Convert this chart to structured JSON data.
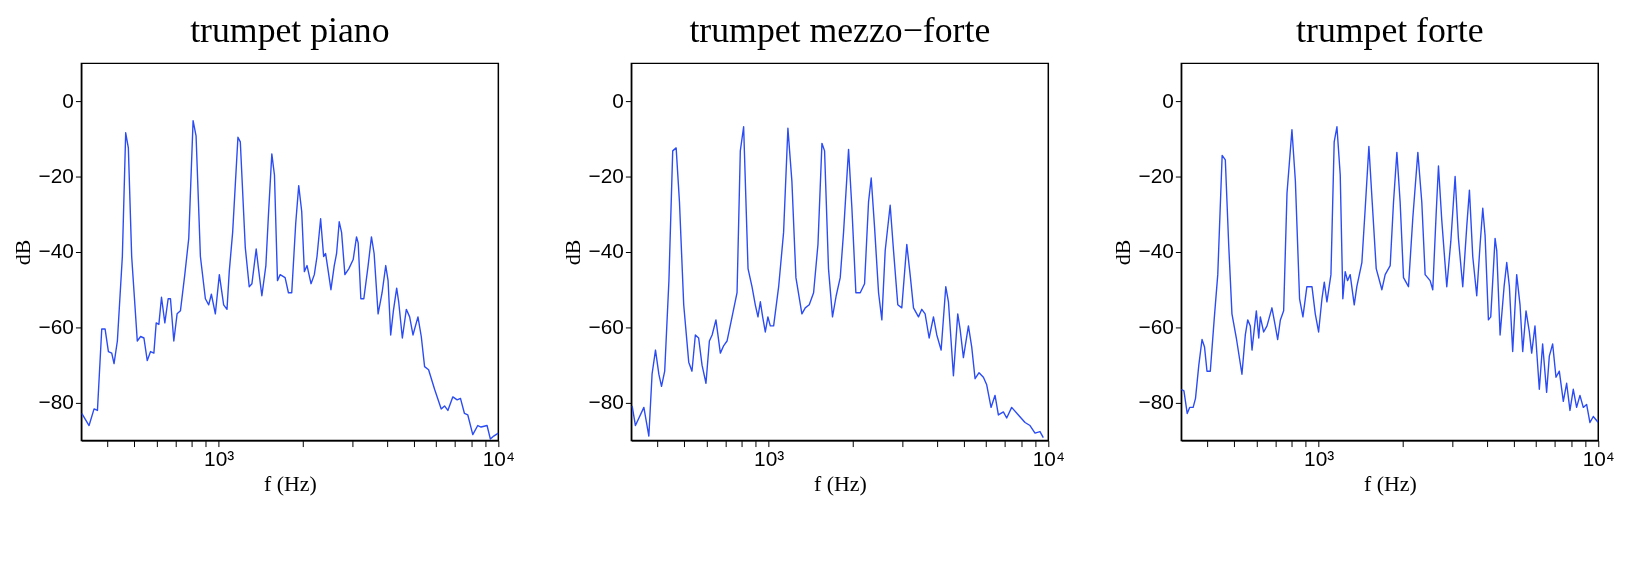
{
  "chart_data": [
    {
      "type": "line",
      "title": "trumpet piano",
      "xlabel": "f (Hz)",
      "ylabel": "dB",
      "log": "x",
      "grid": false,
      "xlim": [
        323,
        10000
      ],
      "ylim": [
        -90,
        10
      ],
      "yticks": [
        -80,
        -60,
        -40,
        -20,
        0
      ],
      "xticks": [
        {
          "value": 400,
          "label": null
        },
        {
          "value": 500,
          "label": null
        },
        {
          "value": 600,
          "label": null
        },
        {
          "value": 700,
          "label": null
        },
        {
          "value": 800,
          "label": null
        },
        {
          "value": 900,
          "label": null
        },
        {
          "value": 1000,
          "label": "10³"
        },
        {
          "value": 2000,
          "label": null
        },
        {
          "value": 3000,
          "label": null
        },
        {
          "value": 4000,
          "label": null
        },
        {
          "value": 5000,
          "label": null
        },
        {
          "value": 6000,
          "label": null
        },
        {
          "value": 7000,
          "label": null
        },
        {
          "value": 8000,
          "label": null
        },
        {
          "value": 9000,
          "label": null
        },
        {
          "value": 10000,
          "label": "10⁴"
        }
      ],
      "x": [
        324,
        344,
        358.5,
        368.6,
        381.9,
        392.5,
        403.4,
        414.6,
        422.6,
        434.3,
        452.5,
        465.1,
        475.4,
        488.6,
        511.7,
        525.9,
        540.5,
        555.5,
        570.8,
        586.6,
        597.9,
        611.2,
        624.6,
        642,
        659.8,
        672.5,
        691.2,
        710.2,
        730,
        756.6,
        781.7,
        810.1,
        830.2,
        860.4,
        896.4,
        921.3,
        941.7,
        973,
        1005.5,
        1042,
        1071,
        1091,
        1122,
        1172,
        1195,
        1245,
        1286,
        1315,
        1362,
        1388,
        1427,
        1475,
        1507,
        1549,
        1583,
        1623,
        1659,
        1728,
        1776,
        1825,
        1886,
        1933,
        1981,
        2025,
        2070,
        2139,
        2198,
        2247,
        2315,
        2373,
        2412,
        2466,
        2520,
        2590,
        2640,
        2698,
        2751,
        2827,
        2922,
        3027,
        3111,
        3154,
        3224,
        3304,
        3423,
        3518,
        3596,
        3716,
        3840,
        3957,
        4034,
        4122,
        4214,
        4330,
        4402,
        4537,
        4688,
        4818,
        4952,
        5159,
        5302,
        5449,
        5631,
        5916,
        6248,
        6421,
        6599,
        6876,
        7124,
        7321,
        7567,
        7777,
        8102,
        8441,
        8676,
        9113,
        9365,
        9625,
        10000
      ],
      "series": [
        {
          "color": "#2b4cf5",
          "values": [
            -82.8,
            -86,
            -81.6,
            -82,
            -60.4,
            -60.4,
            -66.4,
            -66.8,
            -69.6,
            -63.6,
            -41.2,
            -8.4,
            -12.4,
            -41.2,
            -63.6,
            -62.4,
            -62.8,
            -68.8,
            -66.4,
            -66.8,
            -58.8,
            -59.2,
            -52,
            -58.8,
            -52.4,
            -52.4,
            -63.6,
            -56.4,
            -55.6,
            -46,
            -36.4,
            -5.2,
            -9.2,
            -41.2,
            -52.4,
            -54,
            -51.2,
            -56.4,
            -46,
            -54,
            -55.2,
            -45.2,
            -34.8,
            -9.6,
            -10.8,
            -38.8,
            -49.2,
            -48.4,
            -39.2,
            -44.4,
            -51.6,
            -43.6,
            -30,
            -14,
            -19.6,
            -47.6,
            -46,
            -46.8,
            -50.8,
            -50.8,
            -32.4,
            -22.4,
            -29.2,
            -45.2,
            -43.6,
            -48.4,
            -46,
            -41.2,
            -31.2,
            -41.2,
            -40.4,
            -45.2,
            -50,
            -43.6,
            -40.4,
            -32,
            -34.8,
            -46,
            -44.4,
            -42,
            -36,
            -37.6,
            -52.4,
            -52.4,
            -43.6,
            -36,
            -40.4,
            -56.4,
            -50.8,
            -43.6,
            -47.6,
            -62,
            -55.6,
            -49.6,
            -53.2,
            -62.8,
            -55.2,
            -57.2,
            -62,
            -57.2,
            -62.4,
            -70.4,
            -71.2,
            -76.4,
            -81.6,
            -80.8,
            -82,
            -78.4,
            -79.2,
            -78.8,
            -82.8,
            -83.2,
            -88.4,
            -86,
            -86.4,
            -86,
            -89.6,
            -88.8,
            -88
          ]
        }
      ]
    },
    {
      "type": "line",
      "title": "trumpet mezzo−forte",
      "xlabel": "f (Hz)",
      "ylabel": "dB",
      "log": "x",
      "grid": false,
      "xlim": [
        323,
        10000
      ],
      "ylim": [
        -90,
        10
      ],
      "yticks": [
        -80,
        -60,
        -40,
        -20,
        0
      ],
      "xticks": [
        {
          "value": 400,
          "label": null
        },
        {
          "value": 500,
          "label": null
        },
        {
          "value": 600,
          "label": null
        },
        {
          "value": 700,
          "label": null
        },
        {
          "value": 800,
          "label": null
        },
        {
          "value": 900,
          "label": null
        },
        {
          "value": 1000,
          "label": "10³"
        },
        {
          "value": 2000,
          "label": null
        },
        {
          "value": 3000,
          "label": null
        },
        {
          "value": 4000,
          "label": null
        },
        {
          "value": 5000,
          "label": null
        },
        {
          "value": 6000,
          "label": null
        },
        {
          "value": 7000,
          "label": null
        },
        {
          "value": 8000,
          "label": null
        },
        {
          "value": 9000,
          "label": null
        },
        {
          "value": 10000,
          "label": "10⁴"
        }
      ],
      "x": [
        325,
        334,
        358,
        373,
        383,
        394,
        405,
        414,
        425,
        440,
        454,
        467,
        480,
        497,
        518,
        532,
        547,
        562,
        578,
        597,
        614,
        628,
        648,
        672,
        691,
        710,
        740,
        771,
        792,
        814,
        844,
        872,
        896,
        916,
        934,
        952,
        973,
        994,
        1014,
        1042,
        1086,
        1131,
        1172,
        1211,
        1252,
        1315,
        1352,
        1397,
        1448,
        1501,
        1551,
        1585,
        1637,
        1692,
        1744,
        1803,
        1853,
        1931,
        1985,
        2051,
        2126,
        2203,
        2276,
        2327,
        2391,
        2472,
        2540,
        2611,
        2720,
        2796,
        2896,
        2993,
        3119,
        3206,
        3296,
        3434,
        3529,
        3627,
        3749,
        3885,
        3993,
        4138,
        4299,
        4395,
        4579,
        4745,
        4836,
        4971,
        5180,
        5324,
        5472,
        5654,
        5860,
        6022,
        6241,
        6450,
        6629,
        6908,
        7099,
        7396,
        7816,
        8257,
        8602,
        8963,
        9338,
        9597
      ],
      "series": [
        {
          "color": "#2b4cf5",
          "values": [
            -80.8,
            -86,
            -81.2,
            -88.8,
            -72.4,
            -66,
            -72.4,
            -75.6,
            -71.6,
            -47.6,
            -13.2,
            -12.4,
            -26.8,
            -54,
            -69.2,
            -71.6,
            -62,
            -62.8,
            -70,
            -74.8,
            -63.6,
            -62,
            -58,
            -66.8,
            -64.8,
            -63.6,
            -57.2,
            -50.8,
            -13.2,
            -6.8,
            -44.4,
            -49.2,
            -54,
            -57.2,
            -53.2,
            -57.2,
            -61.2,
            -57.2,
            -59.6,
            -59.6,
            -49.2,
            -34.8,
            -7.2,
            -21.2,
            -46.8,
            -56.4,
            -54.8,
            -54,
            -50.8,
            -38,
            -11.2,
            -13.2,
            -44.4,
            -57.2,
            -51.6,
            -46.8,
            -34.8,
            -12.8,
            -28.4,
            -50.8,
            -50.8,
            -48.4,
            -26.8,
            -20.4,
            -33.2,
            -50.8,
            -58,
            -39.6,
            -27.6,
            -39.6,
            -54,
            -54.8,
            -38,
            -46,
            -54.8,
            -57.2,
            -55.2,
            -56.4,
            -62.8,
            -57.2,
            -62,
            -66,
            -49.2,
            -53.2,
            -72.8,
            -56.4,
            -60.4,
            -68,
            -59.6,
            -65.2,
            -73.6,
            -72,
            -73.2,
            -75.2,
            -81.2,
            -78,
            -83.2,
            -82.4,
            -84,
            -81.2,
            -83.2,
            -85.2,
            -86,
            -88,
            -87.6,
            -89.2
          ]
        }
      ]
    },
    {
      "type": "line",
      "title": "trumpet forte",
      "xlabel": "f (Hz)",
      "ylabel": "dB",
      "log": "x",
      "grid": false,
      "xlim": [
        323,
        10000
      ],
      "ylim": [
        -90,
        10
      ],
      "yticks": [
        -80,
        -60,
        -40,
        -20,
        0
      ],
      "xticks": [
        {
          "value": 400,
          "label": null
        },
        {
          "value": 500,
          "label": null
        },
        {
          "value": 600,
          "label": null
        },
        {
          "value": 700,
          "label": null
        },
        {
          "value": 800,
          "label": null
        },
        {
          "value": 900,
          "label": null
        },
        {
          "value": 1000,
          "label": "10³"
        },
        {
          "value": 2000,
          "label": null
        },
        {
          "value": 3000,
          "label": null
        },
        {
          "value": 4000,
          "label": null
        },
        {
          "value": 5000,
          "label": null
        },
        {
          "value": 6000,
          "label": null
        },
        {
          "value": 7000,
          "label": null
        },
        {
          "value": 8000,
          "label": null
        },
        {
          "value": 9000,
          "label": null
        },
        {
          "value": 10000,
          "label": "10⁴"
        }
      ],
      "x": [
        323,
        330,
        339,
        346,
        356,
        363,
        373,
        383,
        391,
        399,
        410,
        424,
        436,
        452,
        464,
        477,
        490,
        508,
        532,
        547,
        558,
        570,
        578,
        589,
        599,
        611,
        619,
        636,
        654,
        681,
        700,
        714,
        730,
        750,
        771,
        803,
        826,
        855,
        879,
        908,
        947,
        973,
        1000,
        1028,
        1048,
        1071,
        1107,
        1137,
        1163,
        1195,
        1221,
        1245,
        1269,
        1297,
        1341,
        1370,
        1428,
        1468,
        1513,
        1555,
        1607,
        1684,
        1730,
        1803,
        1853,
        1905,
        1957,
        2012,
        2096,
        2173,
        2264,
        2339,
        2404,
        2505,
        2560,
        2632,
        2683,
        2757,
        2873,
        2970,
        3077,
        3162,
        3277,
        3387,
        3462,
        3558,
        3677,
        3780,
        3864,
        3938,
        4048,
        4126,
        4276,
        4335,
        4456,
        4605,
        4707,
        4811,
        4943,
        5109,
        5251,
        5368,
        5517,
        5670,
        5780,
        5939,
        6155,
        6325,
        6537,
        6683,
        6869,
        7060,
        7256,
        7499,
        7707,
        7921,
        8141,
        8367,
        8600,
        8839,
        9085,
        9338,
        9597,
        10000
      ],
      "series": [
        {
          "color": "#2b4cf5",
          "values": [
            -76.4,
            -76.8,
            -82.8,
            -81.2,
            -81.2,
            -78.8,
            -70,
            -63.2,
            -65.2,
            -71.6,
            -71.6,
            -57.2,
            -46,
            -14.4,
            -15.6,
            -38,
            -56.4,
            -62.8,
            -72.4,
            -62,
            -58,
            -59.6,
            -66,
            -60.4,
            -55.6,
            -62.8,
            -57.2,
            -61.2,
            -59.6,
            -54.8,
            -59.6,
            -63.2,
            -58,
            -55.6,
            -24.4,
            -7.6,
            -21.2,
            -52.4,
            -57.2,
            -49.2,
            -49.2,
            -56.4,
            -61.2,
            -52.4,
            -48,
            -53.2,
            -46,
            -10.8,
            -6.8,
            -19.6,
            -52.4,
            -45.2,
            -47.6,
            -46,
            -54,
            -49.2,
            -42.8,
            -28.4,
            -12,
            -26.8,
            -44.4,
            -50,
            -46,
            -43.6,
            -26.8,
            -13.6,
            -26.8,
            -46.8,
            -49.2,
            -30.8,
            -13.6,
            -26.8,
            -46,
            -47.6,
            -50,
            -30,
            -17.2,
            -31.6,
            -49.2,
            -37.2,
            -20,
            -36.4,
            -49.2,
            -33.2,
            -23.6,
            -41.2,
            -51.6,
            -38,
            -28.4,
            -35.6,
            -58,
            -57.2,
            -36.4,
            -39.6,
            -62,
            -49.2,
            -42.8,
            -49.2,
            -66.4,
            -46,
            -54,
            -66.4,
            -55.6,
            -61.2,
            -66.8,
            -59.6,
            -76.4,
            -64.4,
            -77.2,
            -67.6,
            -64.4,
            -73.2,
            -71.6,
            -79.6,
            -74.8,
            -82,
            -76.4,
            -81.2,
            -78,
            -81.2,
            -80.4,
            -85.2,
            -83.6,
            -85.2
          ]
        }
      ]
    }
  ]
}
